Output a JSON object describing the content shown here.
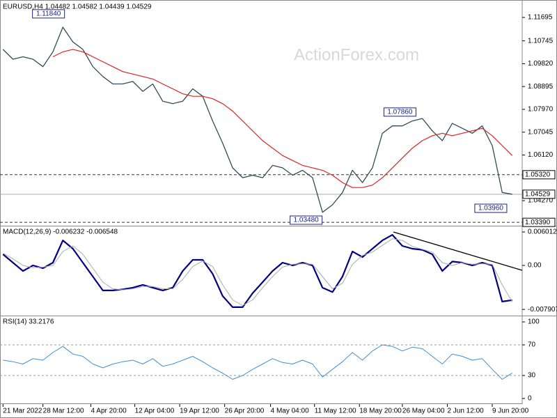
{
  "chart_data": [
    {
      "type": "line",
      "title": "EURUSD,H4  1.04482 1.04582 1.04439 1.04529",
      "watermark": "ActionForex.com",
      "xlim": [
        -0.3,
        52
      ],
      "ylim": [
        1.03282,
        1.12288
      ],
      "yticks": [
        {
          "value": 1.11695,
          "label": "1.11695"
        },
        {
          "value": 1.10745,
          "label": "1.10745"
        },
        {
          "value": 1.0982,
          "label": "1.09820"
        },
        {
          "value": 1.08895,
          "label": "1.08895"
        },
        {
          "value": 1.0797,
          "label": "1.07970"
        },
        {
          "value": 1.07045,
          "label": "1.07045"
        },
        {
          "value": 1.0612,
          "label": "1.06120"
        },
        {
          "value": 1.0427,
          "label": "1.04270"
        }
      ],
      "series": [
        {
          "color": "#2f4d58",
          "width": 1.3,
          "values": [
            1.104,
            1.1,
            1.101,
            1.1,
            1.097,
            1.103,
            1.113,
            1.107,
            1.104,
            1.097,
            1.093,
            1.09,
            1.09,
            1.091,
            1.087,
            1.09,
            1.083,
            1.082,
            1.083,
            1.088,
            1.085,
            1.075,
            1.066,
            1.056,
            1.052,
            1.053,
            1.052,
            1.057,
            1.056,
            1.053,
            1.055,
            1.052,
            1.038,
            1.041,
            1.046,
            1.055,
            1.05,
            1.056,
            1.07,
            1.073,
            1.073,
            1.075,
            1.076,
            1.071,
            1.067,
            1.074,
            1.072,
            1.07,
            1.073,
            1.065,
            1.046,
            1.04529
          ]
        },
        {
          "color": "#dd2222",
          "width": 1.2,
          "values": [
            null,
            null,
            null,
            null,
            null,
            1.101,
            1.103,
            1.104,
            1.103,
            1.101,
            1.099,
            1.097,
            1.095,
            1.094,
            1.093,
            1.092,
            1.09,
            1.088,
            1.086,
            1.085,
            1.085,
            1.084,
            1.082,
            1.079,
            1.075,
            1.071,
            1.067,
            1.064,
            1.061,
            1.059,
            1.057,
            1.056,
            1.055,
            1.053,
            1.05,
            1.048,
            1.048,
            1.049,
            1.052,
            1.056,
            1.06,
            1.064,
            1.067,
            1.069,
            1.07,
            1.069,
            1.07,
            1.071,
            1.072,
            1.069,
            1.065,
            1.061
          ]
        }
      ],
      "markers": [
        {
          "value": 1.0532,
          "label": "1.05320",
          "line": "dashed"
        },
        {
          "value": 1.04529,
          "label": "1.04529",
          "line": "solid"
        },
        {
          "value": 1.0339,
          "label": "1.03390",
          "line": "dashed"
        }
      ],
      "annotations": [
        {
          "label": "1.11840",
          "x": 6.3,
          "value": 1.1184
        },
        {
          "label": "1.07860",
          "x": 41.5,
          "value": 1.0786
        },
        {
          "label": "1.03480",
          "x": 32.1,
          "value": 1.0348
        },
        {
          "label": "1.03960",
          "x": 50.6,
          "value": 1.0396
        }
      ]
    },
    {
      "type": "line",
      "title": "MACD(12,26,9) -0.006232 -0.006548",
      "xlim": [
        -0.3,
        52
      ],
      "ylim": [
        -0.00889,
        0.00676
      ],
      "yticks": [
        0.006012,
        {
          "value": 0,
          "label": "0.00"
        },
        -0.007907
      ],
      "series": [
        {
          "color": "#000080",
          "width": 2.2,
          "values": [
            0.002,
            0.0005,
            -0.001,
            0.0,
            -0.0005,
            0.0005,
            0.0045,
            0.003,
            0.0005,
            -0.002,
            -0.0045,
            -0.0045,
            -0.0043,
            -0.004,
            -0.0035,
            -0.004,
            -0.0045,
            -0.004,
            -0.001,
            0.001,
            0.001,
            -0.0015,
            -0.0055,
            -0.0075,
            -0.0075,
            -0.005,
            -0.003,
            -0.001,
            0.0005,
            0.0,
            0.0005,
            0.0,
            -0.004,
            -0.0048,
            -0.002,
            0.0025,
            0.0015,
            0.003,
            0.0045,
            0.0055,
            0.0035,
            0.003,
            0.0028,
            0.002,
            -0.001,
            0.0007,
            0.0005,
            0.0,
            0.0005,
            0.0,
            -0.0065,
            -0.006232
          ]
        },
        {
          "color": "#aaaaaa",
          "width": 1,
          "values": [
            0.0022,
            0.0012,
            0.0,
            -0.0004,
            -0.0003,
            0.0,
            0.0025,
            0.0035,
            0.002,
            -0.0005,
            -0.003,
            -0.0042,
            -0.0044,
            -0.0042,
            -0.0038,
            -0.0038,
            -0.0042,
            -0.0042,
            -0.0025,
            -0.0002,
            0.0008,
            -0.0002,
            -0.0035,
            -0.0062,
            -0.0072,
            -0.0062,
            -0.004,
            -0.002,
            -0.0003,
            0.0002,
            0.0003,
            0.0002,
            -0.002,
            -0.0042,
            -0.0032,
            0.0002,
            0.0018,
            0.0024,
            0.0036,
            0.0048,
            0.0045,
            0.0034,
            0.0029,
            0.0024,
            0.0005,
            0.0,
            0.0005,
            0.0002,
            0.0003,
            0.0002,
            -0.0035,
            -0.006548
          ]
        }
      ]
    },
    {
      "type": "line",
      "title": "RSI(14) 33.2176",
      "xlim": [
        -0.3,
        52
      ],
      "ylim": [
        -5.5,
        105.5
      ],
      "yticks": [
        100,
        70,
        30,
        0
      ],
      "levels": [
        70,
        30
      ],
      "series": [
        {
          "color": "#3d8fd9",
          "width": 1,
          "values": [
            50,
            48,
            45,
            52,
            50,
            60,
            68,
            58,
            55,
            45,
            40,
            45,
            48,
            50,
            45,
            52,
            42,
            45,
            50,
            55,
            48,
            40,
            33,
            25,
            30,
            38,
            45,
            52,
            47,
            45,
            50,
            45,
            28,
            38,
            48,
            60,
            50,
            62,
            70,
            68,
            62,
            67,
            65,
            55,
            45,
            58,
            55,
            50,
            52,
            38,
            25,
            33.2176
          ]
        }
      ],
      "xticks": [
        {
          "value": 0,
          "label": "21 Mar 2022"
        },
        {
          "value": 4.0,
          "label": "28 Mar 12:00"
        },
        {
          "value": 8.8,
          "label": "4 Apr 20:00"
        },
        {
          "value": 13.2,
          "label": "12 Apr 04:00"
        },
        {
          "value": 17.7,
          "label": "19 Apr 12:00"
        },
        {
          "value": 22.2,
          "label": "26 Apr 20:00"
        },
        {
          "value": 26.8,
          "label": "4 May 04:00"
        },
        {
          "value": 31.2,
          "label": "11 May 12:00"
        },
        {
          "value": 35.7,
          "label": "18 May 20:00"
        },
        {
          "value": 40.0,
          "label": "26 May 04:00"
        },
        {
          "value": 44.5,
          "label": "2 Jun 12:00"
        },
        {
          "value": 49.0,
          "label": "9 Jun 20:00"
        }
      ]
    }
  ]
}
